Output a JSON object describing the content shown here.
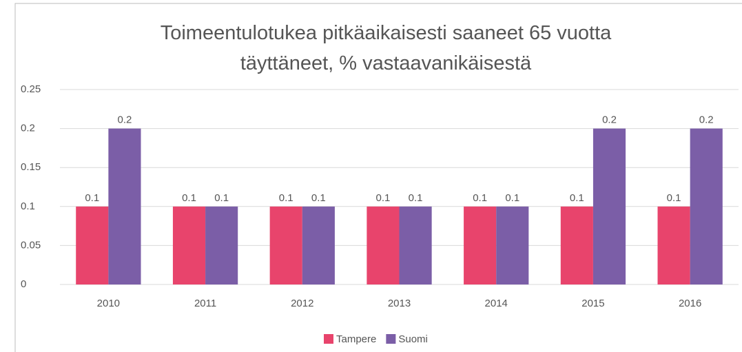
{
  "chart_data": {
    "type": "bar",
    "title": "Toimeentulotukea pitkäaikaisesti saaneet 65 vuotta täyttäneet, % vastaavanikäisestä",
    "categories": [
      "2010",
      "2011",
      "2012",
      "2013",
      "2014",
      "2015",
      "2016"
    ],
    "series": [
      {
        "name": "Tampere",
        "color": "#e8446c",
        "values": [
          0.1,
          0.1,
          0.1,
          0.1,
          0.1,
          0.1,
          0.1
        ]
      },
      {
        "name": "Suomi",
        "color": "#7b5ea7",
        "values": [
          0.2,
          0.1,
          0.1,
          0.1,
          0.1,
          0.2,
          0.2
        ]
      }
    ],
    "ylim": [
      0,
      0.25
    ],
    "yticks": [
      0,
      0.05,
      0.1,
      0.15,
      0.2,
      0.25
    ],
    "grid": true,
    "legend": "bottom"
  }
}
